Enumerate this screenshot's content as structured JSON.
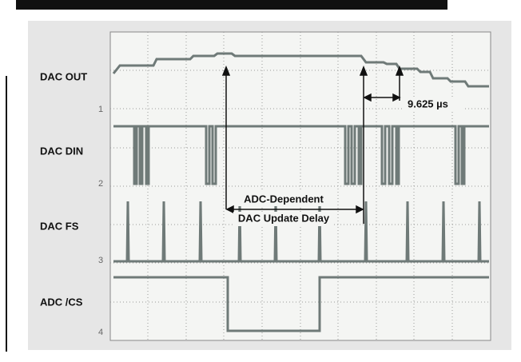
{
  "figure": {
    "signals": [
      "DAC OUT",
      "DAC DIN",
      "DAC FS",
      "ADC /CS"
    ],
    "channels": [
      "1",
      "2",
      "3",
      "4"
    ],
    "annotations": {
      "interval": "9.625 µs",
      "delay_line1": "ADC-Dependent",
      "delay_line2": "DAC Update Delay"
    }
  }
}
